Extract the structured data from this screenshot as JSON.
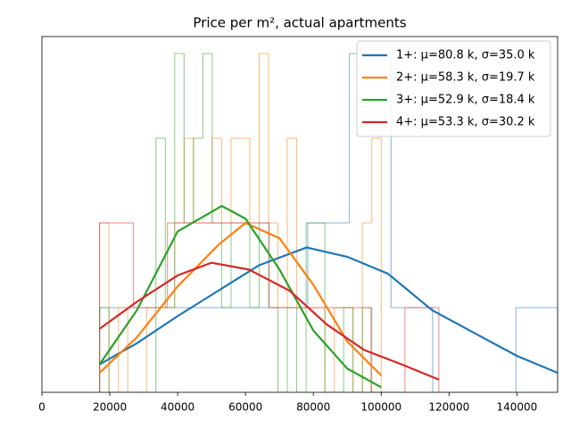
{
  "chart_data": {
    "type": "histogram",
    "title": "Price per m², actual apartments",
    "xlim": [
      0,
      152000
    ],
    "ylim": [
      0,
      4.2
    ],
    "xticks": [
      0,
      20000,
      40000,
      60000,
      80000,
      100000,
      120000,
      140000
    ],
    "legend": "upper right",
    "series": [
      {
        "name": "1+: μ=80.8 k, σ=35.0 k",
        "color": "#1f77b4",
        "bins": [
          17000,
          29270,
          41540,
          53810,
          66080,
          78350,
          90620,
          102890,
          115160,
          127430,
          139700,
          152000
        ],
        "values": [
          1,
          1,
          1,
          1,
          1,
          2,
          4,
          1,
          0,
          0,
          1
        ],
        "fit_x": [
          17000,
          28000,
          40000,
          52000,
          64000,
          78000,
          90000,
          102000,
          115000,
          127000,
          140000,
          152000
        ],
        "fit_values": [
          0.33,
          0.58,
          0.9,
          1.2,
          1.5,
          1.71,
          1.6,
          1.4,
          0.97,
          0.71,
          0.43,
          0.23
        ]
      },
      {
        "name": "2+: μ=58.3 k, σ=19.7 k",
        "color": "#ff7f0e",
        "bins": [
          17000,
          19767,
          22533,
          25300,
          28067,
          30833,
          33600,
          36367,
          39133,
          41900,
          44667,
          47433,
          50200,
          52967,
          55733,
          58500,
          61267,
          64033,
          66800,
          69567,
          72333,
          75100,
          77867,
          80633,
          83400,
          86167,
          88933,
          91700,
          94467,
          97233,
          100000
        ],
        "values": [
          2,
          0,
          1,
          0,
          0,
          1,
          1,
          1,
          2,
          3,
          2,
          2,
          3,
          2,
          3,
          3,
          2,
          4,
          2,
          1,
          3,
          1,
          1,
          1,
          0,
          1,
          1,
          0,
          2,
          3
        ],
        "fit_x": [
          17000,
          28000,
          40000,
          52000,
          60000,
          70000,
          80000,
          90000,
          100000
        ],
        "fit_values": [
          0.23,
          0.65,
          1.25,
          1.74,
          2.0,
          1.82,
          1.27,
          0.6,
          0.2
        ]
      },
      {
        "name": "3+: μ=52.9 k, σ=18.4 k",
        "color": "#2ca02c",
        "bins": [
          17000,
          19767,
          22533,
          25300,
          28067,
          30833,
          33600,
          36367,
          39133,
          41900,
          44667,
          47433,
          50200,
          52967,
          55733,
          58500,
          61267,
          64033,
          66800,
          69567,
          72333,
          75100,
          77867,
          80633,
          83400,
          86167,
          88933,
          91700,
          94467,
          97233,
          100000
        ],
        "values": [
          1,
          0,
          0,
          0,
          0,
          0,
          3,
          1,
          4,
          2,
          3,
          4,
          2,
          1,
          2,
          2,
          1,
          2,
          1,
          0,
          1,
          0,
          2,
          2,
          0,
          0,
          1,
          0,
          1,
          0
        ],
        "fit_x": [
          17000,
          28000,
          40000,
          53000,
          60000,
          70000,
          80000,
          90000,
          100000
        ],
        "fit_values": [
          0.33,
          0.97,
          1.9,
          2.2,
          2.05,
          1.45,
          0.73,
          0.28,
          0.06
        ]
      },
      {
        "name": "4+: μ=53.3 k, σ=30.2 k",
        "color": "#d62728",
        "bins": [
          17000,
          27000,
          37000,
          47000,
          57000,
          67000,
          77000,
          87000,
          97000,
          107000,
          117000
        ],
        "values": [
          2,
          1,
          2,
          2,
          2,
          1,
          1,
          1,
          0,
          1
        ],
        "fit_x": [
          17000,
          28000,
          40000,
          50000,
          61000,
          73000,
          84000,
          95000,
          106000,
          117000
        ],
        "fit_values": [
          0.75,
          1.07,
          1.38,
          1.53,
          1.45,
          1.2,
          0.8,
          0.5,
          0.33,
          0.15
        ]
      }
    ]
  }
}
